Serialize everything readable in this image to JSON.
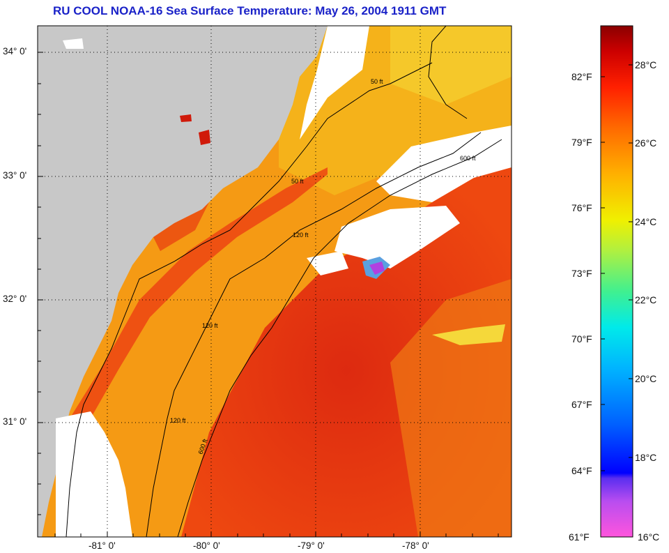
{
  "title": "RU COOL  NOAA-16  Sea Surface Temperature:  May 26, 2004 1911 GMT",
  "map": {
    "lat_ticks": [
      "34° 0'",
      "33° 0'",
      "32° 0'",
      "31° 0'"
    ],
    "lon_ticks": [
      "-81° 0'",
      "-80° 0'",
      "-79° 0'",
      "-78° 0'"
    ],
    "contour_labels": [
      "50 ft",
      "120 ft",
      "600 ft"
    ],
    "colors": {
      "land": "#c8c8c8",
      "cloud": "#ffffff",
      "sst_warm": "#e53a10",
      "sst_mid": "#f27a10",
      "sst_cool": "#f2a01a",
      "contour": "#000000"
    }
  },
  "colorbar": {
    "fahrenheit": [
      "82°F",
      "79°F",
      "76°F",
      "73°F",
      "70°F",
      "67°F",
      "64°F",
      "61°F"
    ],
    "celsius": [
      "28°C",
      "26°C",
      "24°C",
      "22°C",
      "20°C",
      "18°C",
      "16°C"
    ]
  }
}
